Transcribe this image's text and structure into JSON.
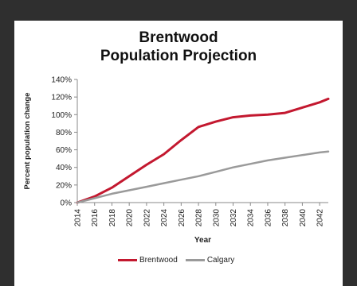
{
  "chart_data": {
    "type": "line",
    "title_line1": "Brentwood",
    "title_line2": "Population Projection",
    "xlabel": "Year",
    "ylabel": "Percent population change",
    "x": [
      2014,
      2016,
      2018,
      2020,
      2022,
      2024,
      2026,
      2028,
      2030,
      2032,
      2034,
      2036,
      2038,
      2040,
      2042,
      2043
    ],
    "xticks": [
      "2014",
      "2016",
      "2018",
      "2020",
      "2022",
      "2024",
      "2026",
      "2028",
      "2030",
      "2032",
      "2034",
      "2036",
      "2038",
      "2040",
      "2042"
    ],
    "yticks": [
      "0%",
      "20%",
      "40%",
      "60%",
      "80%",
      "100%",
      "120%",
      "140%"
    ],
    "ylim": [
      0,
      140
    ],
    "xlim": [
      2014,
      2043
    ],
    "grid": false,
    "legend_position": "bottom",
    "series": [
      {
        "name": "Brentwood",
        "color": "#c3182f",
        "values": [
          0,
          7,
          17,
          30,
          43,
          55,
          71,
          86,
          92,
          97,
          99,
          100,
          102,
          108,
          114,
          118
        ]
      },
      {
        "name": "Calgary",
        "color": "#9a9a9a",
        "values": [
          0,
          5,
          10,
          14,
          18,
          22,
          26,
          30,
          35,
          40,
          44,
          48,
          51,
          54,
          57,
          58
        ]
      }
    ]
  }
}
